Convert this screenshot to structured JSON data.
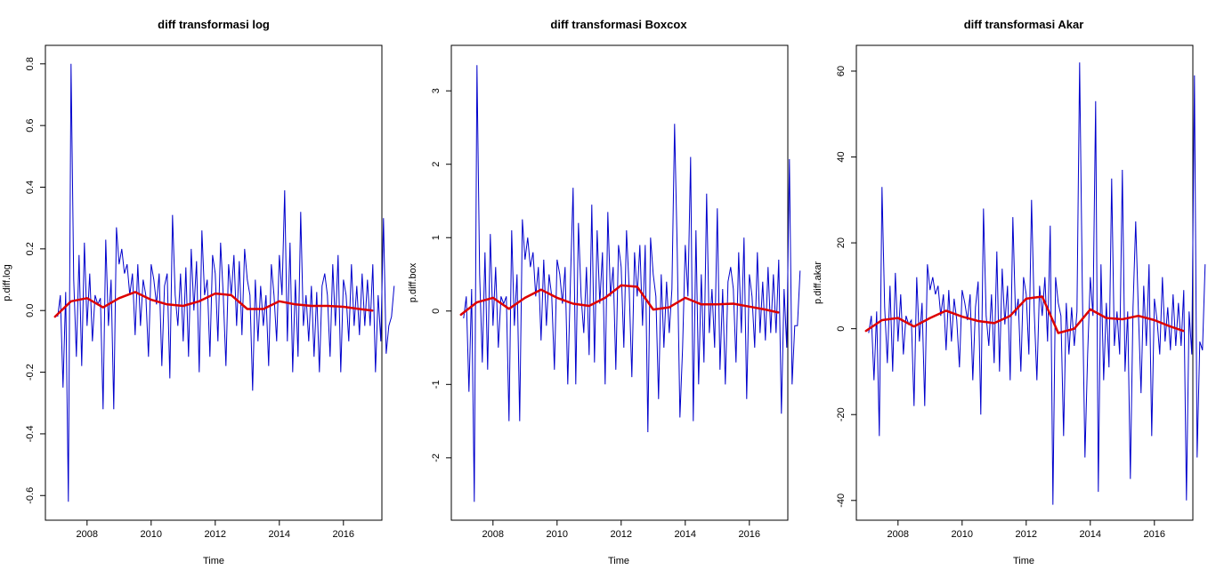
{
  "chart_data": [
    {
      "type": "line",
      "title": "diff transformasi log",
      "xlabel": "Time",
      "ylabel": "p.diff.log",
      "xlim": [
        2006.7,
        2017.2
      ],
      "ylim": [
        -0.68,
        0.86
      ],
      "x_ticks": [
        2008,
        2010,
        2012,
        2014,
        2016
      ],
      "y_ticks": [
        -0.6,
        -0.4,
        -0.2,
        0.0,
        0.2,
        0.4,
        0.6,
        0.8
      ],
      "y_tick_labels": [
        "-0.6",
        "-0.4",
        "-0.2",
        "0.0",
        "0.2",
        "0.4",
        "0.6",
        "0.8"
      ],
      "grid": false,
      "colors": {
        "series": "#0000cc",
        "smooth": "#dd0000"
      },
      "series": [
        {
          "x_start": 2007.083,
          "x_step": 0.0833333,
          "values": [
            -0.02,
            0.05,
            -0.25,
            0.06,
            -0.62,
            0.8,
            0.1,
            -0.15,
            0.18,
            -0.18,
            0.22,
            -0.05,
            0.12,
            -0.1,
            0.05,
            0.02,
            0.04,
            -0.32,
            0.23,
            -0.05,
            0.1,
            -0.32,
            0.27,
            0.15,
            0.2,
            0.12,
            0.15,
            0.05,
            0.12,
            -0.08,
            0.15,
            -0.05,
            0.1,
            0.05,
            -0.15,
            0.15,
            0.1,
            0.02,
            0.12,
            -0.18,
            0.08,
            0.12,
            -0.22,
            0.31,
            0.05,
            -0.05,
            0.12,
            -0.1,
            0.14,
            -0.15,
            0.2,
            0.0,
            0.16,
            -0.2,
            0.26,
            0.05,
            0.1,
            -0.15,
            0.18,
            0.12,
            -0.1,
            0.22,
            0.05,
            -0.18,
            0.15,
            0.05,
            0.18,
            -0.05,
            0.16,
            -0.08,
            0.2,
            0.1,
            0.05,
            -0.26,
            0.1,
            -0.1,
            0.08,
            -0.05,
            0.05,
            -0.18,
            0.15,
            0.05,
            -0.1,
            0.18,
            0.05,
            0.39,
            -0.1,
            0.22,
            -0.2,
            0.1,
            -0.15,
            0.32,
            -0.05,
            0.05,
            -0.1,
            0.08,
            -0.15,
            0.06,
            -0.2,
            0.08,
            0.12,
            0.05,
            -0.15,
            0.15,
            -0.05,
            0.18,
            -0.2,
            0.1,
            0.05,
            -0.1,
            0.15,
            -0.05,
            0.08,
            -0.08,
            0.12,
            -0.05,
            0.1,
            -0.05,
            0.15,
            -0.2,
            0.05,
            -0.1,
            0.3,
            -0.14,
            -0.05,
            -0.02,
            0.08
          ]
        }
      ],
      "smooth": {
        "x": [
          2007.0,
          2007.5,
          2008.0,
          2008.5,
          2009.0,
          2009.5,
          2010.0,
          2010.5,
          2011.0,
          2011.5,
          2012.0,
          2012.5,
          2013.0,
          2013.5,
          2014.0,
          2014.5,
          2015.0,
          2015.5,
          2016.0,
          2016.5,
          2016.9
        ],
        "y": [
          -0.02,
          0.03,
          0.04,
          0.01,
          0.04,
          0.06,
          0.035,
          0.02,
          0.015,
          0.03,
          0.055,
          0.05,
          0.005,
          0.005,
          0.03,
          0.02,
          0.015,
          0.015,
          0.012,
          0.005,
          0.0
        ]
      }
    },
    {
      "type": "line",
      "title": "diff transformasi Boxcox",
      "xlabel": "Time",
      "ylabel": "p.diff.box",
      "xlim": [
        2006.7,
        2017.2
      ],
      "ylim": [
        -2.85,
        3.62
      ],
      "x_ticks": [
        2008,
        2010,
        2012,
        2014,
        2016
      ],
      "y_ticks": [
        -2,
        -1,
        0,
        1,
        2,
        3
      ],
      "y_tick_labels": [
        "-2",
        "-1",
        "0",
        "1",
        "2",
        "3"
      ],
      "grid": false,
      "colors": {
        "series": "#0000cc",
        "smooth": "#dd0000"
      },
      "series": [
        {
          "x_start": 2007.083,
          "x_step": 0.0833333,
          "values": [
            -0.1,
            0.2,
            -1.1,
            0.3,
            -2.6,
            3.35,
            0.5,
            -0.7,
            0.8,
            -0.8,
            1.05,
            -0.2,
            0.6,
            -0.5,
            0.2,
            0.1,
            0.2,
            -1.5,
            1.1,
            -0.2,
            0.5,
            -1.5,
            1.25,
            0.7,
            1.0,
            0.6,
            0.8,
            0.2,
            0.6,
            -0.4,
            0.7,
            -0.2,
            0.5,
            0.2,
            -0.8,
            0.7,
            0.5,
            0.1,
            0.6,
            -1.0,
            0.4,
            1.68,
            -1.0,
            1.2,
            0.2,
            -0.3,
            0.6,
            -0.6,
            1.45,
            -0.7,
            1.1,
            0.1,
            0.8,
            -1.0,
            1.35,
            0.2,
            0.6,
            -0.8,
            0.9,
            0.6,
            -0.5,
            1.1,
            0.3,
            -0.9,
            0.8,
            0.2,
            0.9,
            -0.2,
            0.9,
            -1.65,
            1.0,
            0.5,
            0.2,
            -1.2,
            0.5,
            -0.5,
            0.4,
            -0.3,
            0.3,
            2.55,
            0.8,
            -1.45,
            -0.5,
            0.9,
            0.2,
            2.1,
            -1.5,
            1.1,
            -1.0,
            0.5,
            -0.7,
            1.6,
            -0.3,
            0.3,
            -0.5,
            1.4,
            -0.8,
            0.3,
            -1.0,
            0.4,
            0.6,
            0.3,
            -0.7,
            0.8,
            -0.3,
            1.0,
            -1.2,
            0.5,
            0.2,
            -0.5,
            0.8,
            -0.3,
            0.4,
            -0.4,
            0.6,
            -0.3,
            0.5,
            -0.3,
            0.7,
            -1.4,
            0.3,
            -0.5,
            2.07,
            -1.0,
            -0.2,
            -0.2,
            0.55
          ]
        }
      ],
      "smooth": {
        "x": [
          2007.0,
          2007.5,
          2008.0,
          2008.5,
          2009.0,
          2009.5,
          2010.0,
          2010.5,
          2011.0,
          2011.5,
          2012.0,
          2012.5,
          2013.0,
          2013.5,
          2014.0,
          2014.5,
          2015.0,
          2015.5,
          2016.0,
          2016.5,
          2016.9
        ],
        "y": [
          -0.05,
          0.12,
          0.18,
          0.03,
          0.18,
          0.29,
          0.18,
          0.1,
          0.07,
          0.18,
          0.35,
          0.33,
          0.02,
          0.05,
          0.18,
          0.09,
          0.09,
          0.1,
          0.06,
          0.02,
          -0.02
        ]
      }
    },
    {
      "type": "line",
      "title": "diff transformasi Akar",
      "xlabel": "Time",
      "ylabel": "p.diff.akar",
      "xlim": [
        2006.7,
        2017.2
      ],
      "ylim": [
        -44.6,
        66.0
      ],
      "x_ticks": [
        2008,
        2010,
        2012,
        2014,
        2016
      ],
      "y_ticks": [
        -40,
        -20,
        0,
        20,
        40,
        60
      ],
      "y_tick_labels": [
        "-40",
        "-20",
        "0",
        "20",
        "40",
        "60"
      ],
      "grid": false,
      "colors": {
        "series": "#0000cc",
        "smooth": "#dd0000"
      },
      "series": [
        {
          "x_start": 2007.083,
          "x_step": 0.0833333,
          "values": [
            -1,
            3,
            -12,
            4,
            -25,
            33,
            5,
            -8,
            10,
            -10,
            13,
            -3,
            8,
            -6,
            3,
            1,
            2,
            -18,
            12,
            -3,
            6,
            -18,
            15,
            9,
            12,
            8,
            10,
            3,
            8,
            -5,
            9,
            -3,
            7,
            2,
            -9,
            9,
            6,
            2,
            8,
            -12,
            5,
            11,
            -20,
            28,
            3,
            -4,
            8,
            -8,
            18,
            -10,
            14,
            1,
            10,
            -12,
            26,
            3,
            7,
            -10,
            12,
            8,
            -6,
            30,
            4,
            -12,
            10,
            3,
            12,
            -3,
            24,
            -41,
            12,
            6,
            3,
            -25,
            6,
            -6,
            5,
            -4,
            4,
            62,
            10,
            -30,
            -6,
            12,
            3,
            53,
            -38,
            15,
            -12,
            6,
            -9,
            35,
            -4,
            4,
            -6,
            37,
            -10,
            4,
            -35,
            5,
            25,
            4,
            -15,
            10,
            -4,
            15,
            -25,
            7,
            2,
            -6,
            12,
            -3,
            5,
            -5,
            8,
            -4,
            6,
            -4,
            9,
            -40,
            4,
            -6,
            59,
            -30,
            -3,
            -5,
            15
          ]
        }
      ],
      "smooth": {
        "x": [
          2007.0,
          2007.5,
          2008.0,
          2008.5,
          2009.0,
          2009.5,
          2010.0,
          2010.5,
          2011.0,
          2011.5,
          2012.0,
          2012.5,
          2013.0,
          2013.5,
          2014.0,
          2014.5,
          2015.0,
          2015.5,
          2016.0,
          2016.5,
          2016.9
        ],
        "y": [
          -0.5,
          2.0,
          2.5,
          0.5,
          2.5,
          4.2,
          2.8,
          1.8,
          1.3,
          3.0,
          7.0,
          7.5,
          -1.0,
          0.0,
          4.5,
          2.5,
          2.2,
          3.0,
          2.0,
          0.5,
          -0.5
        ]
      }
    }
  ]
}
